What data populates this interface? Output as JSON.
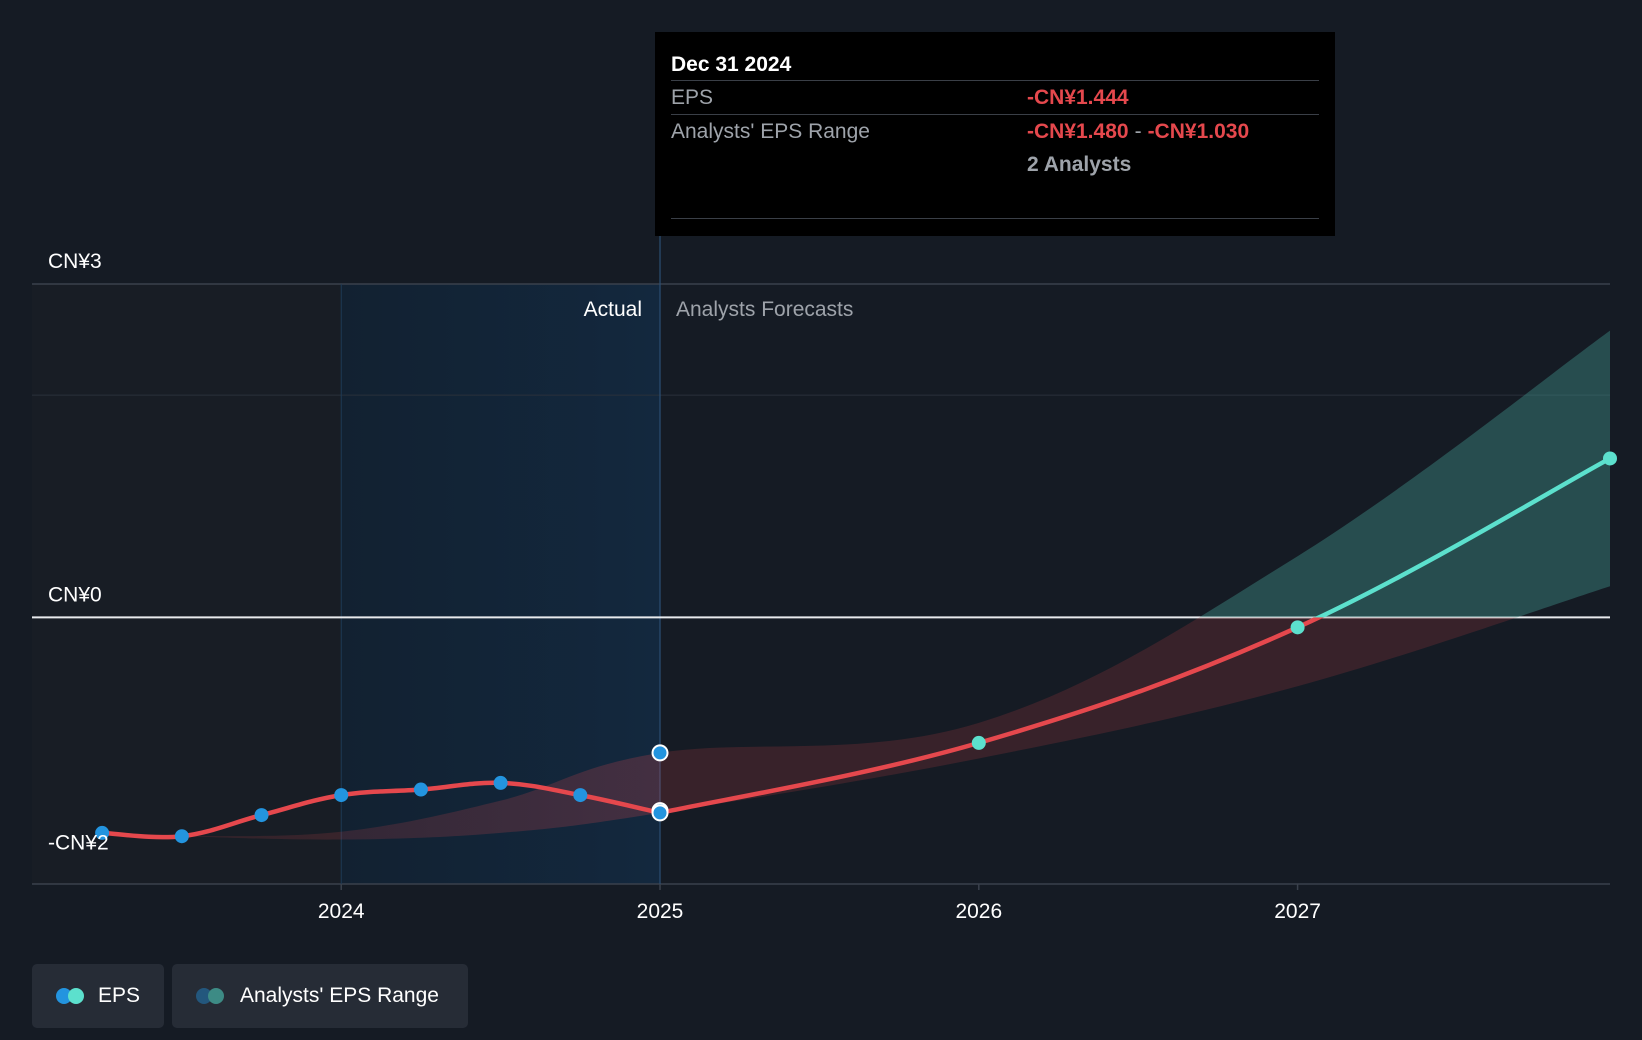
{
  "chart_data": {
    "type": "line",
    "title": "",
    "xlabel": "",
    "ylabel": "",
    "ylim": [
      -2.4,
      3.0
    ],
    "xlim": [
      2023.03,
      2027.98
    ],
    "y_tick_labels": [
      {
        "value": 3,
        "label": "CN¥3"
      },
      {
        "value": 0,
        "label": "CN¥0"
      },
      {
        "value": -2,
        "label": "-CN¥2"
      }
    ],
    "x_ticks": [
      {
        "value": 2024,
        "label": "2024"
      },
      {
        "value": 2025,
        "label": "2025"
      },
      {
        "value": 2026,
        "label": "2026"
      },
      {
        "value": 2027,
        "label": "2027"
      }
    ],
    "grid": true,
    "sections": {
      "actual": "Actual",
      "forecast": "Analysts Forecasts",
      "highlight_start": 2024.0,
      "divider": 2025.0
    },
    "series": [
      {
        "name": "EPS",
        "kind": "actual",
        "color": "#e5484d",
        "point_color": "#2394df",
        "points": [
          {
            "x": 2023.25,
            "y": -1.94
          },
          {
            "x": 2023.5,
            "y": -1.97
          },
          {
            "x": 2023.75,
            "y": -1.78
          },
          {
            "x": 2024.0,
            "y": -1.6
          },
          {
            "x": 2024.25,
            "y": -1.55
          },
          {
            "x": 2024.5,
            "y": -1.49
          },
          {
            "x": 2024.75,
            "y": -1.6
          },
          {
            "x": 2025.0,
            "y": -1.76
          }
        ]
      },
      {
        "name": "EPS",
        "kind": "forecast",
        "color_below_zero": "#e5484d",
        "color_above_zero": "#5ce0cd",
        "points": [
          {
            "x": 2025.0,
            "y": -1.76
          },
          {
            "x": 2026.0,
            "y": -1.13
          },
          {
            "x": 2027.0,
            "y": -0.09
          },
          {
            "x": 2027.98,
            "y": 1.43
          }
        ],
        "markers": [
          {
            "x": 2026.0,
            "y": -1.13
          },
          {
            "x": 2027.0,
            "y": -0.09
          },
          {
            "x": 2027.98,
            "y": 1.43
          }
        ]
      },
      {
        "name": "Analysts' EPS Range",
        "kind": "range",
        "upper": [
          {
            "x": 2023.5,
            "y": -1.97
          },
          {
            "x": 2024.0,
            "y": -1.93
          },
          {
            "x": 2024.5,
            "y": -1.65
          },
          {
            "x": 2025.0,
            "y": -1.22
          },
          {
            "x": 2026.0,
            "y": -0.95
          },
          {
            "x": 2027.0,
            "y": 0.55
          },
          {
            "x": 2027.98,
            "y": 2.58
          }
        ],
        "lower": [
          {
            "x": 2023.5,
            "y": -1.97
          },
          {
            "x": 2024.0,
            "y": -2.0
          },
          {
            "x": 2024.5,
            "y": -1.94
          },
          {
            "x": 2025.0,
            "y": -1.76
          },
          {
            "x": 2026.0,
            "y": -1.27
          },
          {
            "x": 2027.0,
            "y": -0.62
          },
          {
            "x": 2027.98,
            "y": 0.28
          }
        ],
        "endpoints_2025": [
          -1.22,
          -1.74,
          -1.76
        ]
      }
    ]
  },
  "tooltip": {
    "date": "Dec 31 2024",
    "eps_label": "EPS",
    "eps_value": "-CN¥1.444",
    "range_label": "Analysts' EPS Range",
    "range_low": "-CN¥1.480",
    "range_sep": "-",
    "range_high": "-CN¥1.030",
    "analysts": "2 Analysts"
  },
  "legend": {
    "eps_label": "EPS",
    "range_label": "Analysts' EPS Range",
    "colors": {
      "eps_a": "#2394df",
      "eps_b": "#5ce0cd",
      "range_a": "#23577d",
      "range_b": "#3d8b85"
    }
  }
}
